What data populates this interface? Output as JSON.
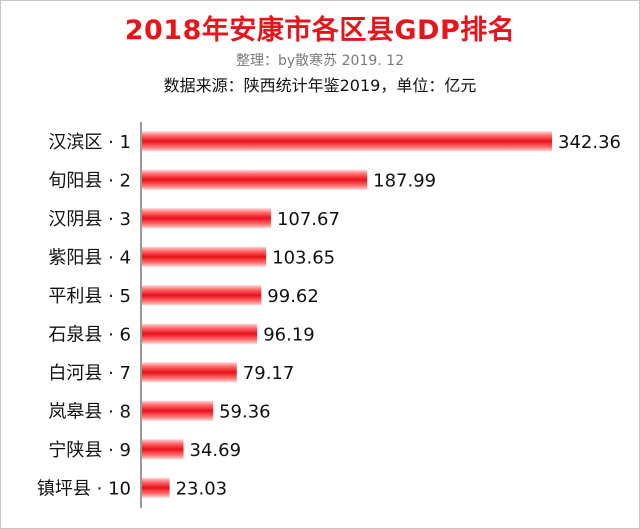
{
  "chart_data": {
    "type": "bar",
    "orientation": "horizontal",
    "title": "2018年安康市各区县GDP排名",
    "subtitle": "整理：by散寒苏 2019. 12",
    "source": "数据来源：陕西统计年鉴2019，单位：亿元",
    "categories": [
      "汉滨区 · 1",
      "旬阳县 · 2",
      "汉阴县 · 3",
      "紫阳县 · 4",
      "平利县 · 5",
      "石泉县 · 6",
      "白河县 · 7",
      "岚皋县 · 8",
      "宁陕县 · 9",
      "镇坪县 · 10"
    ],
    "values": [
      342.36,
      187.99,
      107.67,
      103.65,
      99.62,
      96.19,
      79.17,
      59.36,
      34.69,
      23.03
    ],
    "value_labels": [
      "342.36",
      "187.99",
      "107.67",
      "103.65",
      "99.62",
      "96.19",
      "79.17",
      "59.36",
      "34.69",
      "23.03"
    ],
    "xlim": [
      0,
      342.36
    ],
    "grid": false,
    "legend": "none",
    "bar_color": "#e8101a"
  }
}
